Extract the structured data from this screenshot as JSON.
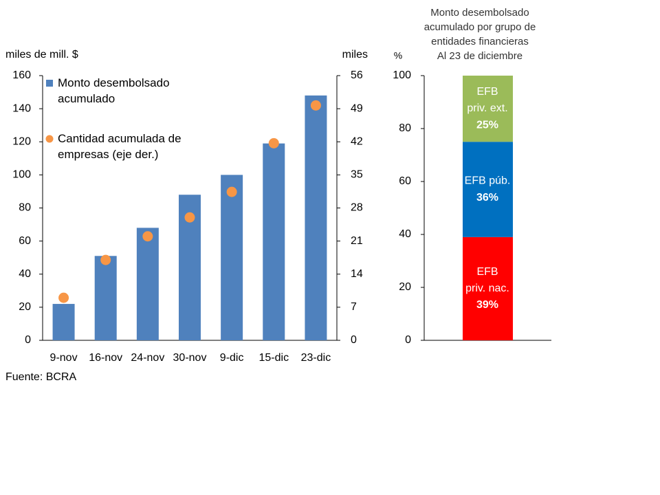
{
  "chart_data": [
    {
      "type": "combo",
      "y_label": "miles de mill. $",
      "y2_label": "miles",
      "categories": [
        "9-nov",
        "16-nov",
        "24-nov",
        "30-nov",
        "9-dic",
        "15-dic",
        "23-dic"
      ],
      "series": [
        {
          "name": "Monto desembolsado acumulado",
          "type": "bar",
          "color": "#4f81bd",
          "values": [
            22,
            51,
            68,
            88,
            100,
            119,
            148
          ]
        },
        {
          "name": "Cantidad acumulada de empresas (eje der.)",
          "type": "scatter",
          "axis": "y2",
          "color": "#f79646",
          "values": [
            9,
            17,
            22,
            26,
            31.4,
            41.7,
            49.7
          ]
        }
      ],
      "ylim": [
        0,
        160
      ],
      "yticks": [
        0,
        20,
        40,
        60,
        80,
        100,
        120,
        140,
        160
      ],
      "y2lim": [
        0,
        56
      ],
      "y2ticks": [
        0,
        7,
        14,
        21,
        28,
        35,
        42,
        49,
        56
      ]
    },
    {
      "type": "stacked_bar",
      "title": [
        "Monto desembolsado",
        "acumulado por grupo de",
        "entidades financieras",
        "Al 23 de diciembre"
      ],
      "y_label": "%",
      "categories": [
        null
      ],
      "series": [
        {
          "name": "EFB priv. nac.",
          "color": "#ff0000",
          "values": [
            39
          ],
          "value_labels": [
            "39%"
          ]
        },
        {
          "name": "EFB púb.",
          "color": "#0070c0",
          "values": [
            36
          ],
          "value_labels": [
            "36%"
          ]
        },
        {
          "name": "EFB priv. ext.",
          "color": "#9bbb59",
          "values": [
            25
          ],
          "value_labels": [
            "25%"
          ]
        }
      ],
      "ylim": [
        0,
        100
      ],
      "yticks": [
        0,
        20,
        40,
        60,
        80,
        100
      ]
    }
  ],
  "source": "Fuente: BCRA"
}
